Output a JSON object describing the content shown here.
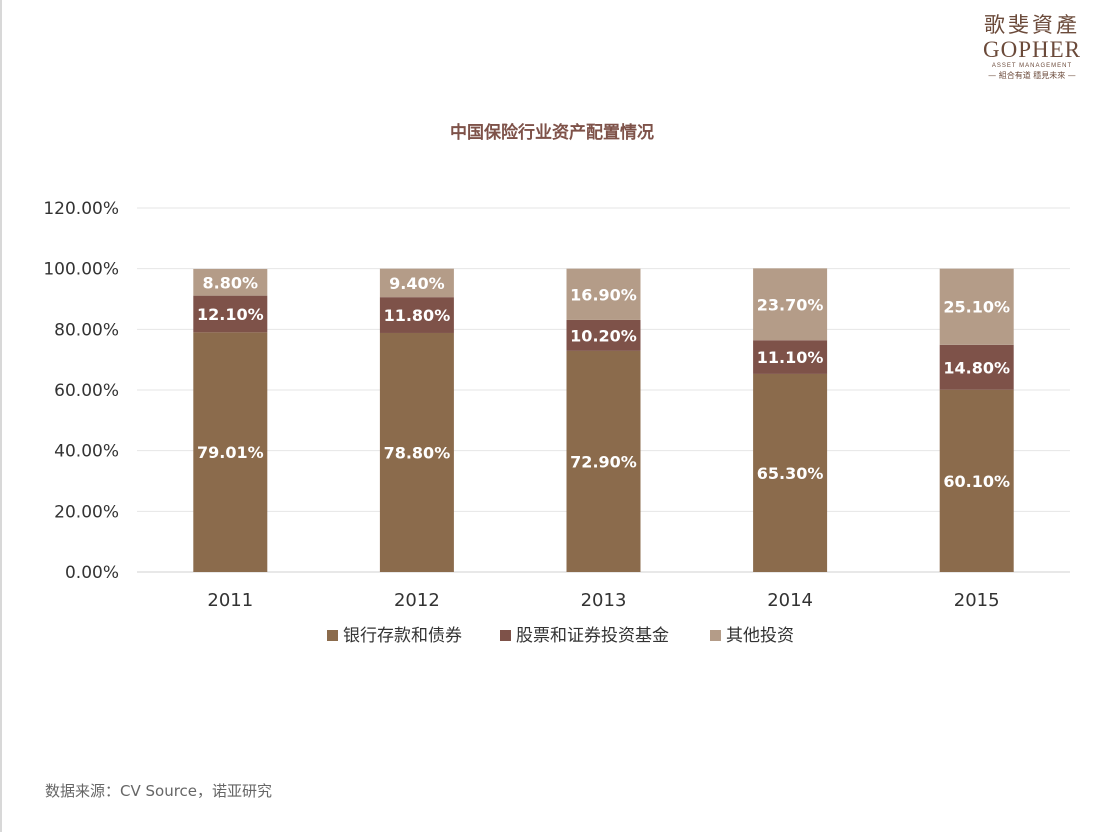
{
  "logo": {
    "cn": "歌斐資產",
    "en": "GOPHER",
    "sub": "ASSET MANAGEMENT",
    "tagline": "— 組合有道 穩見未來 —"
  },
  "source": "数据来源：CV Source，诺亚研究",
  "colors": {
    "bank": "#8b6b4c",
    "stock": "#7e5249",
    "other": "#b49c88",
    "title": "#7e5249",
    "grid": "#e6e6e6",
    "axis_text": "#333333",
    "label_text": "#ffffff"
  },
  "chart_data": {
    "type": "bar",
    "stacked": true,
    "title": "中国保险行业资产配置情况",
    "categories": [
      "2011",
      "2012",
      "2013",
      "2014",
      "2015"
    ],
    "series": [
      {
        "name": "银行存款和债券",
        "values": [
          79.01,
          78.8,
          72.9,
          65.3,
          60.1
        ],
        "labels": [
          "79.01%",
          "78.80%",
          "72.90%",
          "65.30%",
          "60.10%"
        ]
      },
      {
        "name": "股票和证券投资基金",
        "values": [
          12.1,
          11.8,
          10.2,
          11.1,
          14.8
        ],
        "labels": [
          "12.10%",
          "11.80%",
          "10.20%",
          "11.10%",
          "14.80%"
        ]
      },
      {
        "name": "其他投资",
        "values": [
          8.8,
          9.4,
          16.9,
          23.7,
          25.1
        ],
        "labels": [
          "8.80%",
          "9.40%",
          "16.90%",
          "23.70%",
          "25.10%"
        ]
      }
    ],
    "ylim": [
      0,
      120
    ],
    "yticks": [
      0,
      20,
      40,
      60,
      80,
      100,
      120
    ],
    "ytick_labels": [
      "0.00%",
      "20.00%",
      "40.00%",
      "60.00%",
      "80.00%",
      "100.00%",
      "120.00%"
    ],
    "grid": true,
    "legend": "bottom",
    "xlabel": "",
    "ylabel": ""
  }
}
